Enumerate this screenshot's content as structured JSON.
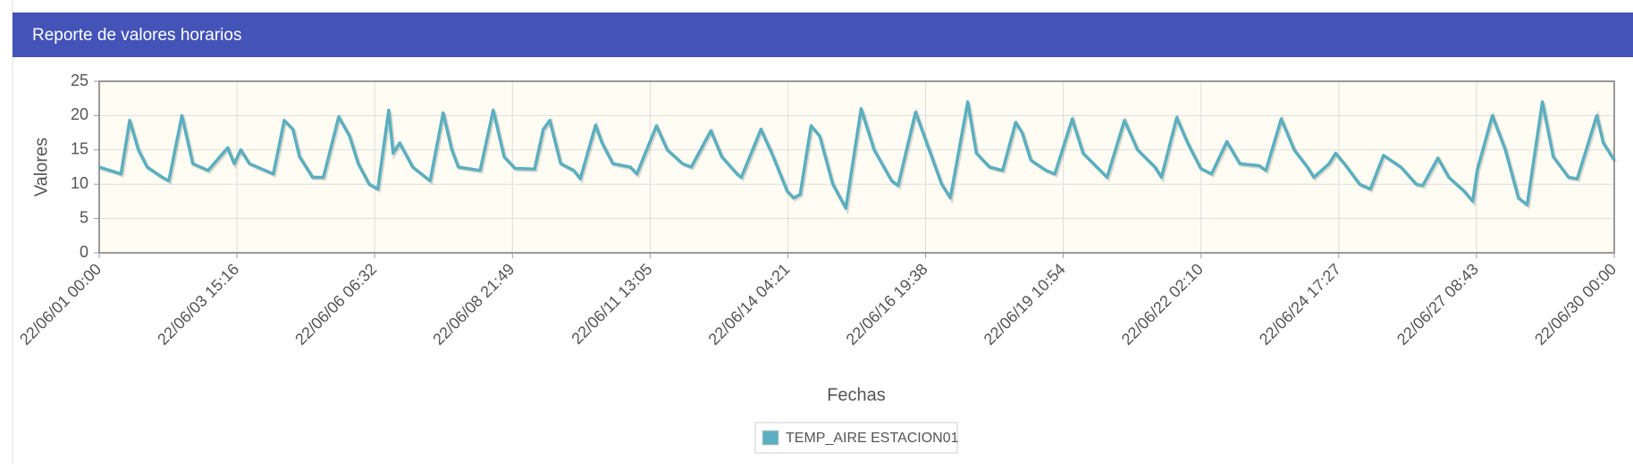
{
  "header": {
    "title": "Reporte de valores horarios"
  },
  "chart_data": {
    "type": "line",
    "xlabel": "Fechas",
    "ylabel": "Valores",
    "x": [
      0,
      10,
      14,
      18,
      22,
      29,
      32,
      38,
      43,
      50,
      59,
      62,
      65,
      69,
      80,
      85,
      89,
      92,
      98,
      103,
      110,
      115,
      119,
      124,
      128,
      133,
      135,
      138,
      144,
      152,
      158,
      162,
      165,
      175,
      181,
      186,
      191,
      200,
      204,
      207,
      212,
      218,
      221,
      228,
      231,
      236,
      244,
      247,
      256,
      261,
      268,
      272,
      281,
      286,
      293,
      295,
      304,
      309,
      316,
      319,
      322,
      327,
      331,
      337,
      343,
      350,
      356,
      364,
      367,
      375,
      379,
      387,
      391,
      399,
      403,
      409,
      415,
      421,
      424,
      428,
      435,
      439,
      447,
      452,
      463,
      471,
      477,
      485,
      488,
      495,
      500,
      506,
      511,
      518,
      524,
      533,
      536,
      543,
      549,
      555,
      558,
      565,
      568,
      572,
      579,
      584,
      590,
      598,
      605,
      608,
      615,
      620,
      627,
      631,
      633,
      640,
      646,
      652,
      656,
      663,
      668,
      675,
      679,
      688,
      691,
      696
    ],
    "series": [
      {
        "name": "TEMP_AIRE ESTACION01",
        "color": "#5aafc0",
        "values": [
          12.5,
          11.5,
          19.3,
          15,
          12.5,
          11,
          10.5,
          20,
          13,
          12,
          15.3,
          13,
          15,
          13,
          11.5,
          19.3,
          18,
          14,
          11,
          11,
          19.8,
          17,
          13,
          10,
          9.3,
          20.8,
          14.5,
          16,
          12.5,
          10.5,
          20.4,
          15,
          12.5,
          12,
          20.8,
          14,
          12.3,
          12.2,
          18,
          19.3,
          13,
          12,
          10.8,
          18.6,
          16,
          13,
          12.5,
          11.5,
          18.5,
          15,
          13,
          12.5,
          17.8,
          14,
          11.5,
          11,
          18,
          14.5,
          9,
          8,
          8.5,
          18.5,
          17,
          10,
          6.5,
          21,
          15,
          10.5,
          9.8,
          20.5,
          17,
          10,
          8,
          22,
          14.5,
          12.5,
          12,
          19,
          17.5,
          13.5,
          12,
          11.5,
          19.5,
          14.5,
          11,
          19.3,
          15,
          12.5,
          11,
          19.7,
          16,
          12.3,
          11.5,
          16.2,
          13,
          12.7,
          12,
          19.5,
          15,
          12.5,
          11,
          13,
          14.5,
          13,
          10,
          9.3,
          14.2,
          12.5,
          10,
          9.8,
          13.8,
          11,
          9,
          7.5,
          12,
          20,
          15,
          8,
          7,
          22,
          14,
          11,
          10.8,
          20,
          16,
          13.5
        ]
      }
    ],
    "xlim": [
      0,
      696
    ],
    "xticks": [
      {
        "value": 0,
        "label": "22/06/01 00:00"
      },
      {
        "value": 63.27,
        "label": "22/06/03 15:16"
      },
      {
        "value": 126.53,
        "label": "22/06/06 06:32"
      },
      {
        "value": 189.82,
        "label": "22/06/08 21:49"
      },
      {
        "value": 253.08,
        "label": "22/06/11 13:05"
      },
      {
        "value": 316.35,
        "label": "22/06/14 04:21"
      },
      {
        "value": 379.63,
        "label": "22/06/16 19:38"
      },
      {
        "value": 442.9,
        "label": "22/06/19 10:54"
      },
      {
        "value": 506.17,
        "label": "22/06/22 02:10"
      },
      {
        "value": 569.45,
        "label": "22/06/24 17:27"
      },
      {
        "value": 632.72,
        "label": "22/06/27 08:43"
      },
      {
        "value": 696,
        "label": "22/06/30 00:00"
      }
    ],
    "ylim": [
      0,
      25
    ],
    "yticks": [
      0,
      5,
      10,
      15,
      20,
      25
    ],
    "grid": true
  }
}
